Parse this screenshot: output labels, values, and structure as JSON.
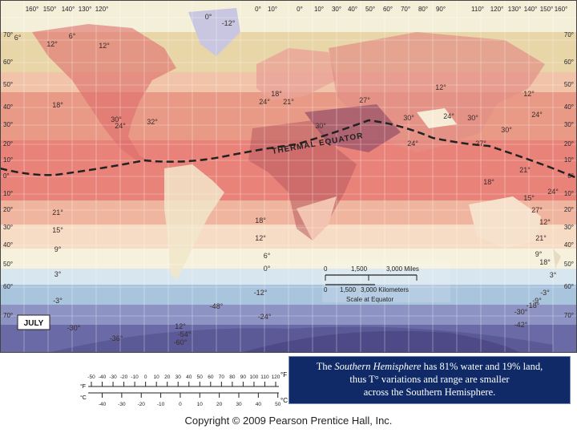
{
  "map": {
    "month_label": "JULY",
    "thermal_equator_label": "THERMAL EQUATOR",
    "top_longitudes": [
      "160°",
      "150°",
      "140°",
      "130°",
      "120°",
      "0°",
      "10°",
      "0°",
      "10°",
      "30°",
      "40°",
      "50°",
      "60°",
      "70°",
      "80°",
      "90°",
      "110°",
      "120°",
      "130°",
      "140°",
      "150°",
      "160°"
    ],
    "left_latitudes": [
      "70°",
      "60°",
      "50°",
      "40°",
      "30°",
      "20°",
      "10°",
      "0°",
      "10°",
      "20°",
      "30°",
      "40°",
      "50°",
      "60°",
      "70°"
    ],
    "right_latitudes": [
      "70°",
      "60°",
      "50°",
      "40°",
      "30°",
      "20°",
      "10°",
      "0°",
      "10°",
      "20°",
      "30°",
      "40°",
      "50°",
      "60°",
      "70°"
    ],
    "scale": {
      "miles_row": [
        "0",
        "1,500",
        "3,000 Miles"
      ],
      "km_row": [
        "0",
        "1,500",
        "3,000 Kilometers"
      ],
      "caption": "Scale at Equator"
    },
    "isotherm_labels": [
      "-12°",
      "0°",
      "6°",
      "12°",
      "12°",
      "18°",
      "24°",
      "30°",
      "32°",
      "30°",
      "30°",
      "24°",
      "18°",
      "12°",
      "12°",
      "6°",
      "24°",
      "21°",
      "27°",
      "24°",
      "30°",
      "30°",
      "27°",
      "24°",
      "21°",
      "18°",
      "15°",
      "12°",
      "9°",
      "3°",
      "6°",
      "0°",
      "-12°",
      "-3°",
      "-24°",
      "-30°",
      "-36°",
      "-48°",
      "-54°",
      "-60°",
      "12°",
      "18°",
      "21°",
      "27°",
      "24°",
      "21°",
      "18°",
      "15°",
      "12°",
      "9°",
      "3°",
      "-3°",
      "-9°",
      "-18°",
      "-30°",
      "-42°"
    ]
  },
  "caption": {
    "prefix": "The ",
    "emphasis": "Southern Hemisphere",
    "line1_rest": " has 81% water and 19% land,",
    "line2": "thus T° variations and range are smaller",
    "line3": "across the Southern Hemisphere."
  },
  "thermometer": {
    "fahrenheit_ticks": [
      "-50",
      "-40",
      "-30",
      "-20",
      "-10",
      "0",
      "10",
      "20",
      "30",
      "40",
      "50",
      "60",
      "70",
      "80",
      "90",
      "100",
      "110",
      "120"
    ],
    "celsius_ticks": [
      "-40",
      "-30",
      "-20",
      "-10",
      "0",
      "10",
      "20",
      "30",
      "40",
      "50"
    ],
    "f_unit": "°F",
    "c_unit": "°C"
  },
  "footer": {
    "copyright": "Copyright © 2009 Pearson Prentice Hall, Inc."
  },
  "colors": {
    "ice": "#d8dff0",
    "cold": "#8d93c3",
    "very_cold": "#6a6aa6",
    "cool": "#bfd3e6",
    "mild": "#f3ecd2",
    "warm": "#f2c9b0",
    "hot": "#e8847c",
    "hottest": "#a0586a",
    "equator_line": "#222222",
    "caption_bg": "#0f2a66"
  }
}
